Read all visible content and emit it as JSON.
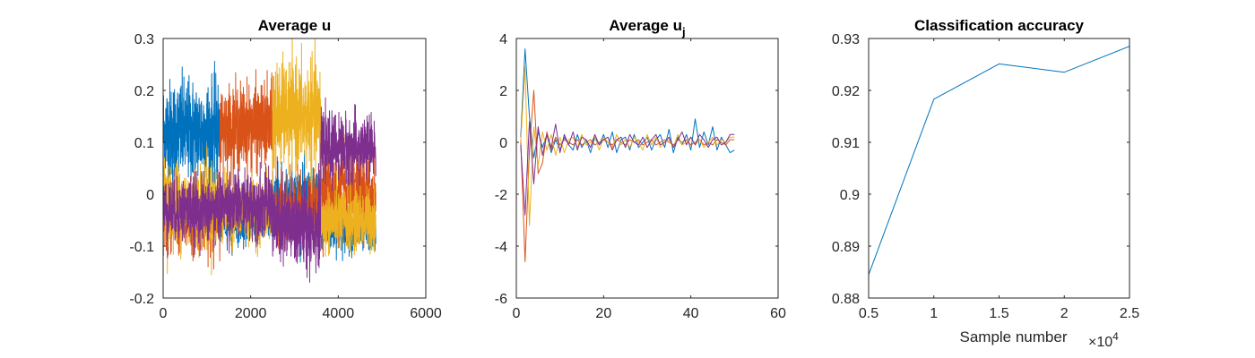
{
  "chart_data": [
    {
      "type": "line",
      "title": "Average u",
      "xlabel": "",
      "ylabel": "",
      "xlim": [
        0,
        6000
      ],
      "ylim": [
        -0.2,
        0.3
      ],
      "xticks": [
        0,
        2000,
        4000,
        6000
      ],
      "yticks": [
        -0.2,
        -0.1,
        0,
        0.1,
        0.2,
        0.3
      ],
      "xtick_labels": [
        "0",
        "2000",
        "4000",
        "6000"
      ],
      "ytick_labels": [
        "-0.2",
        "-0.1",
        "0",
        "0.1",
        "0.2",
        "0.3"
      ],
      "grid": false,
      "noisy": true,
      "n_points": 4860,
      "series": [
        {
          "color": "#0072BD",
          "segments": [
            [
              0,
              1300,
              0.12,
              0.05
            ],
            [
              1300,
              2500,
              -0.05,
              0.02
            ],
            [
              2500,
              3600,
              -0.01,
              0.03
            ],
            [
              3600,
              4860,
              -0.07,
              0.02
            ]
          ]
        },
        {
          "color": "#D95319",
          "segments": [
            [
              0,
              1300,
              -0.05,
              0.03
            ],
            [
              1300,
              2500,
              0.13,
              0.04
            ],
            [
              2500,
              3600,
              -0.03,
              0.03
            ],
            [
              3600,
              4860,
              0.0,
              0.04
            ]
          ]
        },
        {
          "color": "#EDB120",
          "segments": [
            [
              0,
              1300,
              -0.02,
              0.04
            ],
            [
              1300,
              2500,
              -0.03,
              0.03
            ],
            [
              2500,
              3600,
              0.15,
              0.05
            ],
            [
              3600,
              4860,
              -0.05,
              0.03
            ]
          ]
        },
        {
          "color": "#7E2F8E",
          "segments": [
            [
              0,
              1300,
              -0.03,
              0.03
            ],
            [
              1300,
              2500,
              -0.02,
              0.03
            ],
            [
              2500,
              3600,
              -0.06,
              0.04
            ],
            [
              3600,
              4860,
              0.09,
              0.03
            ]
          ]
        }
      ]
    },
    {
      "type": "line",
      "title": "Average u",
      "title_subscript": "j",
      "xlabel": "",
      "ylabel": "",
      "xlim": [
        0,
        60
      ],
      "ylim": [
        -6,
        4
      ],
      "xticks": [
        0,
        20,
        40,
        60
      ],
      "yticks": [
        -6,
        -4,
        -2,
        0,
        2,
        4
      ],
      "xtick_labels": [
        "0",
        "20",
        "40",
        "60"
      ],
      "ytick_labels": [
        "-6",
        "-4",
        "-2",
        "0",
        "2",
        "4"
      ],
      "grid": false,
      "series": [
        {
          "color": "#0072BD",
          "x": [
            1,
            2,
            3,
            4,
            5,
            6,
            7,
            8,
            9,
            10,
            11,
            12,
            13,
            14,
            15,
            16,
            17,
            18,
            19,
            20,
            21,
            22,
            23,
            24,
            25,
            26,
            27,
            28,
            29,
            30,
            31,
            32,
            33,
            34,
            35,
            36,
            37,
            38,
            39,
            40,
            41,
            42,
            43,
            44,
            45,
            46,
            47,
            48,
            49,
            50
          ],
          "values": [
            0.2,
            3.6,
            1.0,
            -0.6,
            0.4,
            -0.2,
            0.3,
            -0.4,
            0.1,
            -0.3,
            0.2,
            -0.1,
            -0.3,
            0.3,
            -0.2,
            0.1,
            -0.4,
            0.2,
            -0.1,
            0.3,
            -0.2,
            0.4,
            -0.4,
            0.1,
            0.2,
            -0.3,
            0.3,
            -0.2,
            0.0,
            0.2,
            -0.3,
            0.1,
            0.3,
            -0.2,
            0.5,
            -0.4,
            0.2,
            -0.1,
            0.3,
            -0.3,
            0.9,
            -0.2,
            0.4,
            -0.1,
            0.6,
            -0.3,
            0.2,
            -0.1,
            -0.4,
            -0.3
          ]
        },
        {
          "color": "#D95319",
          "x": [
            1,
            2,
            3,
            4,
            5,
            6,
            7,
            8,
            9,
            10,
            11,
            12,
            13,
            14,
            15,
            16,
            17,
            18,
            19,
            20,
            21,
            22,
            23,
            24,
            25,
            26,
            27,
            28,
            29,
            30,
            31,
            32,
            33,
            34,
            35,
            36,
            37,
            38,
            39,
            40,
            41,
            42,
            43,
            44,
            45,
            46,
            47,
            48,
            49,
            50
          ],
          "values": [
            0.1,
            -4.6,
            -0.3,
            2.0,
            -1.2,
            -0.8,
            0.4,
            -0.3,
            0.2,
            -0.1,
            0.1,
            0.0,
            -0.1,
            0.1,
            -0.1,
            0.0,
            0.1,
            -0.1,
            0.0,
            0.1,
            0.0,
            -0.1,
            0.1,
            0.0,
            -0.1,
            0.1,
            0.0,
            0.1,
            -0.1,
            0.0,
            0.1,
            -0.1,
            0.0,
            0.1,
            0.0,
            -0.1,
            0.1,
            0.0,
            0.1,
            -0.1,
            0.0,
            0.1,
            -0.1,
            0.0,
            -0.1,
            0.1,
            0.0,
            -0.1,
            0.1,
            0.1
          ]
        },
        {
          "color": "#EDB120",
          "x": [
            1,
            2,
            3,
            4,
            5,
            6,
            7,
            8,
            9,
            10,
            11,
            12,
            13,
            14,
            15,
            16,
            17,
            18,
            19,
            20,
            21,
            22,
            23,
            24,
            25,
            26,
            27,
            28,
            29,
            30,
            31,
            32,
            33,
            34,
            35,
            36,
            37,
            38,
            39,
            40,
            41,
            42,
            43,
            44,
            45,
            46,
            47,
            48,
            49,
            50
          ],
          "values": [
            0.0,
            2.9,
            -3.2,
            0.6,
            -0.9,
            0.4,
            -0.3,
            0.3,
            -0.5,
            0.2,
            -0.4,
            0.1,
            0.2,
            -0.2,
            0.3,
            -0.1,
            0.0,
            0.2,
            -0.3,
            0.2,
            0.0,
            -0.2,
            0.3,
            -0.1,
            0.1,
            -0.2,
            0.2,
            0.0,
            -0.3,
            0.3,
            -0.1,
            0.2,
            -0.2,
            0.0,
            0.1,
            -0.2,
            0.3,
            -0.1,
            0.0,
            0.2,
            -0.1,
            0.1,
            -0.2,
            0.0,
            0.2,
            -0.1,
            0.1,
            0.0,
            0.2,
            0.2
          ]
        },
        {
          "color": "#7E2F8E",
          "x": [
            1,
            2,
            3,
            4,
            5,
            6,
            7,
            8,
            9,
            10,
            11,
            12,
            13,
            14,
            15,
            16,
            17,
            18,
            19,
            20,
            21,
            22,
            23,
            24,
            25,
            26,
            27,
            28,
            29,
            30,
            31,
            32,
            33,
            34,
            35,
            36,
            37,
            38,
            39,
            40,
            41,
            42,
            43,
            44,
            45,
            46,
            47,
            48,
            49,
            50
          ],
          "values": [
            -0.1,
            -2.8,
            0.8,
            -1.6,
            0.6,
            -0.5,
            0.3,
            -0.2,
            0.7,
            -0.4,
            0.3,
            -0.1,
            0.4,
            -0.3,
            0.2,
            0.1,
            -0.2,
            0.3,
            -0.1,
            0.1,
            0.2,
            -0.3,
            0.1,
            0.2,
            -0.2,
            0.3,
            0.0,
            -0.1,
            0.2,
            -0.2,
            0.1,
            0.3,
            -0.1,
            0.0,
            0.2,
            -0.2,
            0.1,
            0.4,
            -0.1,
            0.2,
            -0.1,
            0.3,
            0.1,
            -0.2,
            0.1,
            0.2,
            -0.1,
            0.0,
            0.3,
            0.3
          ]
        }
      ]
    },
    {
      "type": "line",
      "title": "Classification accuracy",
      "xlabel": "Sample number",
      "x_multiplier_base": "×10",
      "x_multiplier_exp": "4",
      "ylabel": "",
      "xlim": [
        5000,
        25000
      ],
      "ylim": [
        0.88,
        0.93
      ],
      "xticks": [
        5000,
        10000,
        15000,
        20000,
        25000
      ],
      "yticks": [
        0.88,
        0.89,
        0.9,
        0.91,
        0.92,
        0.93
      ],
      "xtick_labels": [
        "0.5",
        "1",
        "1.5",
        "2",
        "2.5"
      ],
      "ytick_labels": [
        "0.88",
        "0.89",
        "0.9",
        "0.91",
        "0.92",
        "0.93"
      ],
      "grid": false,
      "series": [
        {
          "color": "#0072BD",
          "x": [
            5000,
            10000,
            15000,
            20000,
            25000
          ],
          "values": [
            0.8845,
            0.9183,
            0.9251,
            0.9235,
            0.9285
          ]
        }
      ]
    }
  ]
}
